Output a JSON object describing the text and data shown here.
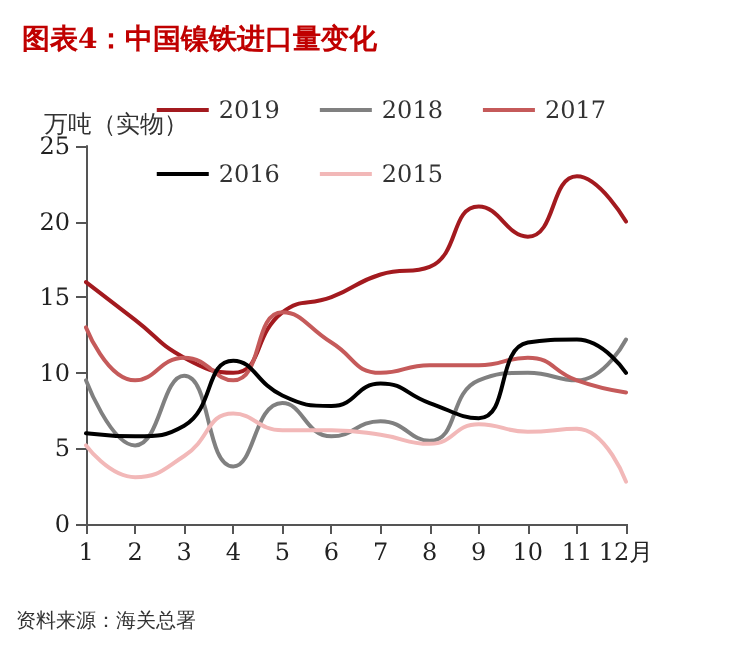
{
  "chart_data": {
    "type": "line",
    "title": "图表4：中国镍铁进口量变化",
    "ylabel": "万吨（实物）",
    "categories": [
      "1",
      "2",
      "3",
      "4",
      "5",
      "6",
      "7",
      "8",
      "9",
      "10",
      "11",
      "12月"
    ],
    "series": [
      {
        "name": "2019",
        "color": "#a31a1f",
        "values": [
          16,
          13.5,
          11,
          10,
          14,
          15,
          16.5,
          17,
          21,
          19,
          23,
          20
        ]
      },
      {
        "name": "2018",
        "color": "#808080",
        "values": [
          9.5,
          5.2,
          9.8,
          3.8,
          8,
          5.8,
          6.8,
          5.5,
          9.5,
          10,
          9.5,
          12.2
        ]
      },
      {
        "name": "2017",
        "color": "#c55a5a",
        "values": [
          13,
          9.5,
          11,
          9.5,
          14,
          12,
          10,
          10.5,
          10.5,
          11,
          9.5,
          8.7
        ]
      },
      {
        "name": "2016",
        "color": "#000000",
        "values": [
          6,
          5.8,
          6.5,
          10.8,
          8.5,
          7.8,
          9.3,
          8,
          7,
          12,
          12.2,
          10
        ]
      },
      {
        "name": "2015",
        "color": "#f2b8b8",
        "values": [
          5.2,
          3.1,
          4.5,
          7.3,
          6.2,
          6.2,
          5.9,
          5.3,
          6.6,
          6.1,
          6.3,
          2.8
        ]
      }
    ],
    "ylim": [
      0,
      25
    ],
    "yticks": [
      0,
      5,
      10,
      15,
      20,
      25
    ],
    "grid": false,
    "legend": "top right",
    "marker": "none",
    "line_style": "solid",
    "annotations": [
      "资料来源：海关总署"
    ]
  }
}
